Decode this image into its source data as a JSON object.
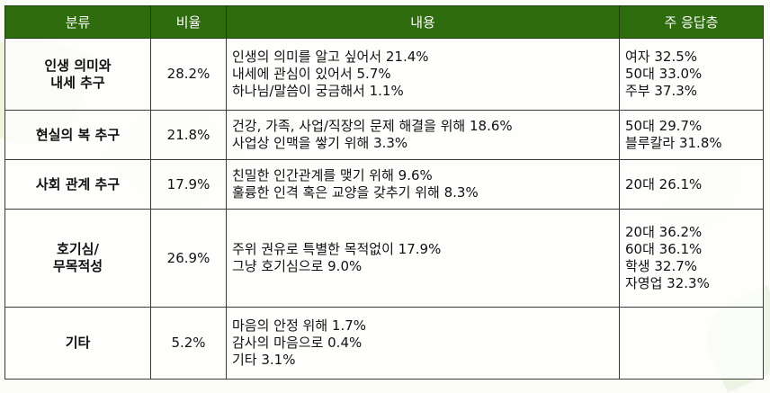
{
  "table": {
    "headers": [
      "분류",
      "비율",
      "내용",
      "주 응답층"
    ],
    "rows": [
      {
        "category": [
          "인생 의미와",
          "내세 추구"
        ],
        "ratio": "28.2%",
        "content": [
          "인생의 의미를 알고 싶어서 21.4%",
          "내세에 관심이 있어서 5.7%",
          "하나님/말씀이 궁금해서 1.1%"
        ],
        "respondents": [
          "여자 32.5%",
          "50대 33.0%",
          "주부 37.3%"
        ]
      },
      {
        "category": [
          "현실의 복 추구"
        ],
        "ratio": "21.8%",
        "content": [
          "건강, 가족, 사업/직장의 문제 해결을 위해 18.6%",
          "사업상 인맥을 쌓기 위해 3.3%"
        ],
        "respondents": [
          "50대 29.7%",
          "블루칼라 31.8%"
        ]
      },
      {
        "category": [
          "사회 관계 추구"
        ],
        "ratio": "17.9%",
        "content": [
          "친밀한 인간관계를 맺기 위해 9.6%",
          "훌륭한 인격 혹은 교양을 갖추기 위해 8.3%"
        ],
        "respondents": [
          "20대 26.1%"
        ]
      },
      {
        "category": [
          "호기심/",
          "무목적성"
        ],
        "ratio": "26.9%",
        "content": [
          "주위 권유로 특별한 목적없이 17.9%",
          "그냥 호기심으로 9.0%"
        ],
        "respondents": [
          "20대 36.2%",
          "60대 36.1%",
          "학생 32.7%",
          "자영업 32.3%"
        ]
      },
      {
        "category": [
          "기타"
        ],
        "ratio": "5.2%",
        "content": [
          "마음의 안정 위해 1.7%",
          "감사의 마음으로 0.4%",
          "기타 3.1%"
        ],
        "respondents": []
      }
    ]
  },
  "colors": {
    "header_bg": "#2f6b0f",
    "header_text": "#ffffff",
    "border": "#3a3a3a"
  }
}
